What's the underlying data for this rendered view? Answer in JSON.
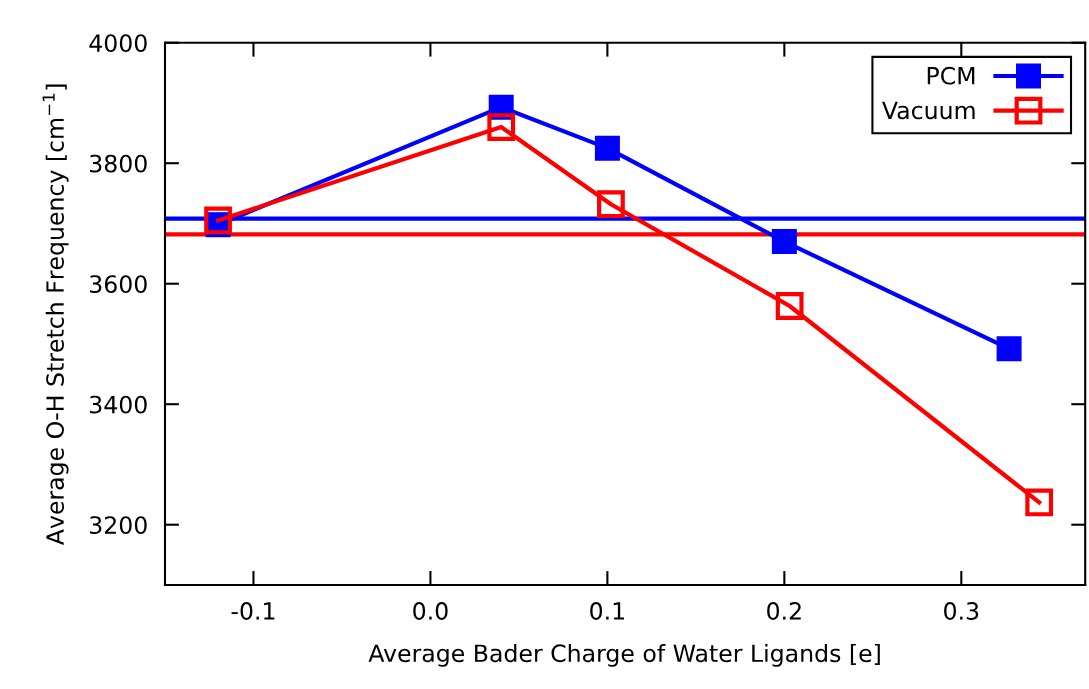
{
  "chart_data": {
    "type": "line",
    "xlabel": "Average Bader Charge of Water Ligands [e]",
    "ylabel": "Average O-H Stretch Frequency [cm$^{−1}$]",
    "xlim": [
      -0.15,
      0.37
    ],
    "xticks": [
      {
        "value": -0.1,
        "label": "-0.1"
      },
      {
        "value": 0.0,
        "label": "0.0"
      },
      {
        "value": 0.1,
        "label": "0.1"
      },
      {
        "value": 0.2,
        "label": "0.2"
      },
      {
        "value": 0.3,
        "label": "0.3"
      }
    ],
    "ylim": [
      3100,
      4000
    ],
    "yticks": [
      3200,
      3400,
      3600,
      3800,
      4000
    ],
    "series": [
      {
        "name": "PCM",
        "color": "#0000ff",
        "marker": "square",
        "x": [
          -0.12,
          0.04,
          0.1,
          0.2,
          0.327
        ],
        "values": [
          3698,
          3893,
          3825,
          3670,
          3492
        ]
      },
      {
        "name": "Vacuum",
        "color": "#ff0000",
        "marker": "square",
        "x": [
          -0.12,
          0.04,
          0.102,
          0.203,
          0.344
        ],
        "values": [
          3705,
          3860,
          3732,
          3563,
          3237
        ]
      }
    ],
    "ref_lines": [
      {
        "axis": "y",
        "value": 3708,
        "color": "#0000ff"
      },
      {
        "axis": "y",
        "value": 3682,
        "color": "#ff0000"
      }
    ],
    "grid": false,
    "legend": "top right",
    "line_style": "solid"
  }
}
